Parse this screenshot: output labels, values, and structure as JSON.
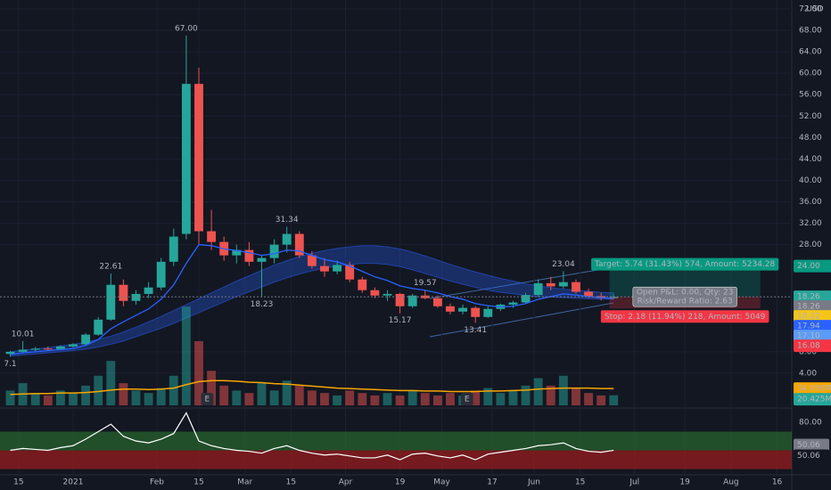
{
  "chart_data": {
    "type": "candlestick",
    "currency": "USD",
    "xlim": [
      -17.45,
      171.5
    ],
    "xticks": [
      {
        "value": -13,
        "label": "15"
      },
      {
        "value": 0,
        "label": "2021"
      },
      {
        "value": 20,
        "label": "Feb"
      },
      {
        "value": 30,
        "label": "15"
      },
      {
        "value": 41,
        "label": "Mar"
      },
      {
        "value": 52,
        "label": "15"
      },
      {
        "value": 65,
        "label": "Apr"
      },
      {
        "value": 78,
        "label": "19"
      },
      {
        "value": 88,
        "label": "May"
      },
      {
        "value": 100,
        "label": "17"
      },
      {
        "value": 110,
        "label": "Jun"
      },
      {
        "value": 121,
        "label": "15"
      },
      {
        "value": 134,
        "label": "Jul"
      },
      {
        "value": 146,
        "label": "19"
      },
      {
        "value": 157,
        "label": "Aug"
      },
      {
        "value": 168,
        "label": "16"
      }
    ],
    "ylim": [
      -2,
      73.66
    ],
    "yticks": [
      {
        "value": 4,
        "label": "4.00"
      },
      {
        "value": 8,
        "label": "8.00"
      },
      {
        "value": 28,
        "label": "28.00"
      },
      {
        "value": 32,
        "label": "32.00"
      },
      {
        "value": 36,
        "label": "36.00"
      },
      {
        "value": 40,
        "label": "40.00"
      },
      {
        "value": 44,
        "label": "44.00"
      },
      {
        "value": 48,
        "label": "48.00"
      },
      {
        "value": 52,
        "label": "52.00"
      },
      {
        "value": 56,
        "label": "56.00"
      },
      {
        "value": 60,
        "label": "60.00"
      },
      {
        "value": 64,
        "label": "64.00"
      },
      {
        "value": 68,
        "label": "68.00"
      },
      {
        "value": 72,
        "label": "72.00"
      }
    ],
    "up_color": "#26a69a",
    "down_color": "#ef5350",
    "x": [
      -15,
      -12,
      -9,
      -6,
      -3,
      0,
      3,
      6,
      9,
      12,
      15,
      18,
      21,
      24,
      27,
      30,
      33,
      36,
      39,
      42,
      45,
      48,
      51,
      54,
      57,
      60,
      63,
      66,
      69,
      72,
      75,
      78,
      81,
      84,
      87,
      90,
      93,
      96,
      99,
      102,
      105,
      108,
      111,
      114,
      117,
      120,
      123,
      126,
      129
    ],
    "open": [
      7.6,
      8.0,
      8.4,
      8.6,
      8.5,
      9.0,
      9.4,
      11.2,
      14.0,
      20.5,
      17.5,
      18.8,
      20.0,
      24.8,
      30.0,
      58.0,
      30.5,
      28.5,
      26.0,
      27.0,
      24.8,
      25.5,
      28.0,
      30.0,
      26.0,
      24.0,
      23.0,
      24.2,
      21.5,
      19.5,
      18.5,
      18.8,
      16.5,
      18.5,
      18.0,
      16.5,
      15.5,
      16.2,
      14.5,
      16.0,
      16.8,
      17.2,
      18.6,
      20.8,
      20.2,
      21.0,
      19.2,
      18.4,
      18.0
    ],
    "high": [
      8.2,
      10.01,
      8.9,
      9.0,
      9.2,
      9.6,
      11.5,
      14.5,
      22.61,
      21.5,
      19.5,
      21.0,
      25.5,
      31.0,
      67.0,
      61.0,
      34.5,
      29.5,
      28.0,
      28.5,
      26.0,
      29.0,
      31.34,
      30.5,
      26.8,
      25.5,
      25.0,
      24.8,
      22.0,
      20.0,
      19.5,
      19.0,
      18.8,
      19.57,
      18.5,
      17.0,
      16.8,
      16.5,
      16.5,
      17.0,
      17.5,
      19.0,
      21.5,
      22.0,
      23.04,
      21.5,
      19.8,
      19.0,
      18.6
    ],
    "low": [
      7.1,
      7.8,
      8.1,
      8.3,
      8.4,
      8.8,
      9.3,
      11.0,
      13.8,
      16.5,
      16.8,
      18.0,
      19.5,
      24.0,
      29.0,
      28.0,
      27.0,
      25.0,
      24.5,
      24.0,
      18.23,
      24.5,
      26.5,
      25.5,
      23.5,
      22.0,
      22.5,
      21.0,
      19.0,
      18.0,
      17.5,
      15.17,
      16.2,
      17.8,
      16.2,
      15.0,
      15.0,
      13.41,
      14.3,
      15.6,
      16.2,
      17.0,
      18.2,
      19.5,
      19.8,
      18.8,
      18.0,
      17.6,
      17.9
    ],
    "close": [
      8.0,
      8.4,
      8.6,
      8.5,
      9.0,
      9.4,
      11.2,
      14.0,
      20.5,
      17.5,
      18.8,
      20.0,
      24.8,
      29.5,
      58.0,
      30.5,
      28.5,
      26.0,
      27.0,
      24.8,
      25.5,
      28.0,
      30.0,
      26.0,
      24.0,
      23.0,
      24.2,
      21.5,
      19.5,
      18.5,
      18.8,
      16.5,
      18.5,
      18.0,
      16.5,
      15.5,
      16.2,
      14.5,
      16.0,
      16.8,
      17.2,
      18.6,
      20.8,
      20.2,
      21.0,
      19.2,
      18.4,
      18.0,
      18.26
    ],
    "ema": {
      "color": "#2962ff",
      "values": [
        7.5,
        7.8,
        8.0,
        8.2,
        8.4,
        8.6,
        9.2,
        10.3,
        12.3,
        13.6,
        14.8,
        16.0,
        17.8,
        20.5,
        24.5,
        28.0,
        27.8,
        27.2,
        26.9,
        26.5,
        26.0,
        26.3,
        27.0,
        26.8,
        26.0,
        25.2,
        24.8,
        24.0,
        23.0,
        22.0,
        21.3,
        20.3,
        19.8,
        19.5,
        19.0,
        18.3,
        17.8,
        17.0,
        16.6,
        16.4,
        16.5,
        17.0,
        17.8,
        18.3,
        18.8,
        18.6,
        18.3,
        18.1,
        17.94
      ]
    },
    "band": {
      "color": "#2962ff",
      "upper": [
        8.0,
        8.3,
        8.5,
        8.8,
        9.1,
        9.4,
        9.8,
        10.3,
        10.9,
        11.7,
        12.6,
        13.6,
        14.6,
        15.7,
        16.8,
        17.9,
        19.0,
        20.1,
        21.2,
        22.2,
        23.2,
        24.2,
        25.0,
        25.8,
        26.4,
        26.9,
        27.3,
        27.6,
        27.8,
        27.8,
        27.6,
        27.2,
        26.6,
        25.9,
        25.1,
        24.3,
        23.6,
        22.9,
        22.3,
        21.7,
        21.2,
        20.7,
        20.3,
        20.0,
        19.7,
        19.5,
        19.3,
        19.1,
        19.0
      ],
      "lower": [
        7.2,
        7.4,
        7.6,
        7.8,
        8.0,
        8.2,
        8.5,
        8.9,
        9.4,
        10.0,
        10.8,
        11.6,
        12.4,
        13.3,
        14.3,
        15.3,
        16.3,
        17.3,
        18.3,
        19.2,
        20.1,
        21.0,
        21.8,
        22.5,
        23.1,
        23.6,
        24.0,
        24.3,
        24.5,
        24.5,
        24.3,
        23.9,
        23.3,
        22.6,
        21.9,
        21.2,
        20.6,
        20.0,
        19.5,
        19.1,
        18.8,
        18.5,
        18.3,
        18.2,
        18.1,
        18.0,
        17.9,
        17.8,
        17.8
      ]
    },
    "volume": {
      "vlim": [
        0,
        240
      ],
      "last_label": "20.425M",
      "color": "#26a69a",
      "values": [
        30,
        45,
        25,
        20,
        30,
        25,
        40,
        60,
        90,
        45,
        30,
        25,
        35,
        60,
        200,
        130,
        70,
        40,
        30,
        25,
        45,
        30,
        50,
        40,
        30,
        25,
        20,
        30,
        25,
        20,
        25,
        20,
        30,
        25,
        20,
        25,
        20,
        30,
        35,
        25,
        30,
        40,
        55,
        40,
        60,
        35,
        25,
        20,
        20.425
      ],
      "ma": {
        "color": "#f7a600",
        "last_label": "34.098M",
        "values": [
          22,
          23,
          24,
          24,
          25,
          25,
          26,
          28,
          31,
          33,
          33,
          32,
          33,
          35,
          42,
          48,
          50,
          50,
          49,
          47,
          46,
          44,
          43,
          41,
          39,
          37,
          35,
          34,
          33,
          32,
          31,
          30,
          30,
          29,
          29,
          28,
          28,
          28,
          29,
          29,
          30,
          31,
          33,
          34,
          35,
          35,
          35,
          34,
          34.098
        ]
      }
    },
    "annotations": [
      {
        "x": -15,
        "value": 7.1,
        "label": "7.1",
        "pos": "below"
      },
      {
        "x": -12,
        "value": 10.01,
        "label": "10.01",
        "pos": "above"
      },
      {
        "x": 9,
        "value": 22.61,
        "label": "22.61",
        "pos": "above"
      },
      {
        "x": 27,
        "value": 67,
        "label": "67.00",
        "pos": "above"
      },
      {
        "x": 45,
        "value": 18.23,
        "label": "18.23",
        "pos": "below"
      },
      {
        "x": 51,
        "value": 31.34,
        "label": "31.34",
        "pos": "above"
      },
      {
        "x": 78,
        "value": 15.17,
        "label": "15.17",
        "pos": "below"
      },
      {
        "x": 84,
        "value": 19.57,
        "label": "19.57",
        "pos": "above"
      },
      {
        "x": 96,
        "value": 13.41,
        "label": "13.41",
        "pos": "below"
      },
      {
        "x": 117,
        "value": 23.04,
        "label": "23.04",
        "pos": "above"
      }
    ],
    "events": [
      {
        "x": 32,
        "label": "E"
      },
      {
        "x": 94,
        "label": "E"
      }
    ],
    "position": {
      "entry": 18.26,
      "target": 24,
      "stop": 16.08,
      "x_start": 128,
      "x_end": 164,
      "target_text": "Target: 5.74 (31.43%) 574, Amount: 5234.28",
      "stop_text": "Stop: 2.18 (11.94%) 218, Amount: 5049",
      "info_lines": [
        "Open P&L: 0.00, Qty: 23",
        "Risk/Reward Ratio: 2.63"
      ]
    },
    "price_tags": [
      {
        "value": 24,
        "label": "24.00",
        "color": "#089981",
        "text_color": "#ffffff"
      },
      {
        "value": 18.26,
        "label": "18.26",
        "color": "#26a69a",
        "text_color": "#ffffff"
      },
      {
        "value": 18.26,
        "label": "18.26",
        "color": "#787b86",
        "text_color": "#ffffff"
      },
      {
        "value": 18.22,
        "label": "18.22",
        "color": "#f5c518",
        "text_color": "#131722"
      },
      {
        "value": 17.94,
        "label": "17.94",
        "color": "#2962ff",
        "text_color": "#ffffff"
      },
      {
        "value": 17.1,
        "label": "17.10",
        "color": "#5b9cf6",
        "text_color": "#ffffff"
      },
      {
        "value": 16.08,
        "label": "16.08",
        "color": "#f23645",
        "text_color": "#ffffff"
      }
    ],
    "rsi": {
      "ylim": [
        24.8,
        93.3
      ],
      "yticks": [
        {
          "value": 80,
          "label": "80.00"
        },
        {
          "value": 40,
          "label": "40.00"
        }
      ],
      "color": "#ffffff",
      "upper_band": 70,
      "middle": 50,
      "lower_band": 30,
      "values": [
        50,
        52,
        51,
        50,
        53,
        55,
        62,
        70,
        78,
        65,
        60,
        58,
        62,
        68,
        90,
        60,
        55,
        52,
        50,
        49,
        47,
        52,
        55,
        50,
        47,
        45,
        46,
        44,
        42,
        42,
        45,
        40,
        46,
        47,
        44,
        42,
        45,
        40,
        46,
        48,
        50,
        52,
        55,
        56,
        58,
        52,
        49,
        48,
        50.06
      ],
      "tags": [
        {
          "value": 50.06,
          "label": "50.06",
          "color": "#787b86"
        },
        {
          "value": 50.06,
          "label": "50.06",
          "color": "#131722"
        }
      ]
    }
  }
}
